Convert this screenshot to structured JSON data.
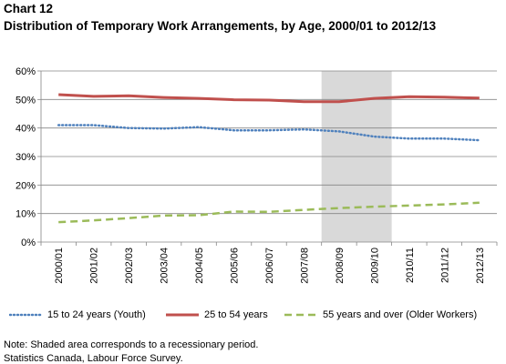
{
  "header": {
    "chart_label": "Chart 12",
    "title": "Distribution of Temporary Work Arrangements, by Age, 2000/01 to 2012/13"
  },
  "footer": {
    "note": "Note: Shaded area corresponds to a recessionary period.",
    "source": "Statistics Canada,  Labour Force Survey."
  },
  "chart_data": {
    "type": "line",
    "title": "Distribution of Temporary Work Arrangements, by Age, 2000/01 to 2012/13",
    "categories": [
      "2000/01",
      "2001/02",
      "2002/03",
      "2003/04",
      "2004/05",
      "2005/06",
      "2006/07",
      "2007/08",
      "2008/09",
      "2009/10",
      "2010/11",
      "2011/12",
      "2012/13"
    ],
    "y_ticks": [
      "0%",
      "10%",
      "20%",
      "30%",
      "40%",
      "50%",
      "60%"
    ],
    "ylim": [
      0,
      60
    ],
    "y_unit": "%",
    "grid": true,
    "legend_position": "bottom",
    "recession_shading": {
      "from": "2008/09",
      "to": "2009/10",
      "color": "#d9d9d9"
    },
    "series": [
      {
        "name": "15 to 24 years (Youth)",
        "color": "#4f81bd",
        "style": "dotted",
        "values": [
          41.0,
          41.0,
          40.0,
          39.8,
          40.3,
          39.2,
          39.2,
          39.5,
          38.8,
          37.0,
          36.3,
          36.3,
          35.7
        ]
      },
      {
        "name": "25 to 54 years",
        "color": "#c0504d",
        "style": "solid",
        "values": [
          51.7,
          51.1,
          51.3,
          50.7,
          50.4,
          49.9,
          49.8,
          49.2,
          49.2,
          50.4,
          51.0,
          50.8,
          50.5
        ]
      },
      {
        "name": "55 years and over (Older Workers)",
        "color": "#9bbb59",
        "style": "dashed",
        "values": [
          7.0,
          7.6,
          8.4,
          9.3,
          9.4,
          10.7,
          10.6,
          11.3,
          11.9,
          12.4,
          12.8,
          13.2,
          13.8
        ]
      }
    ]
  }
}
